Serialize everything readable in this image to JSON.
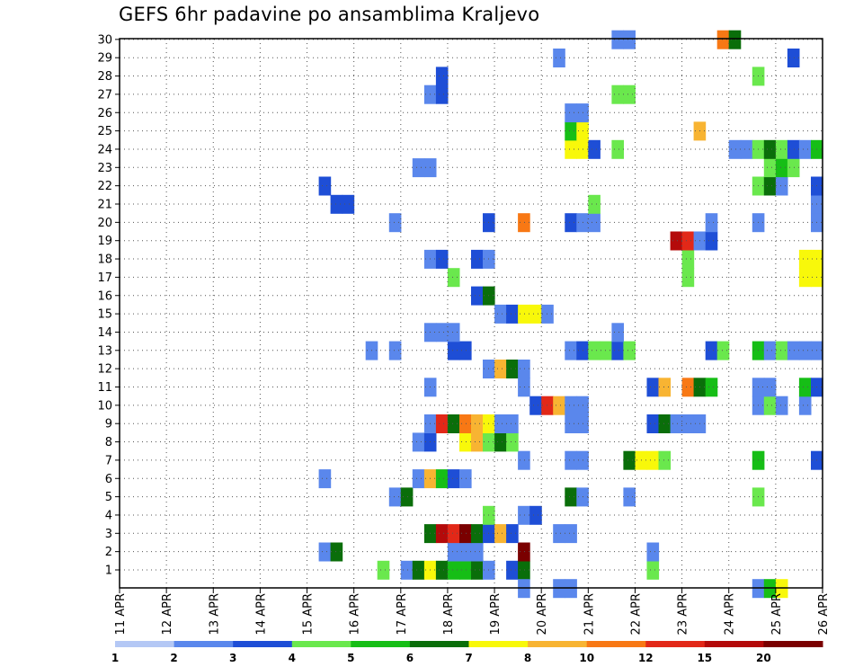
{
  "chart_data": {
    "type": "heatmap",
    "title": "GEFS 6hr padavine po ansamblima Kraljevo",
    "y_ticks": [
      1,
      2,
      3,
      4,
      5,
      6,
      7,
      8,
      9,
      10,
      11,
      12,
      13,
      14,
      15,
      16,
      17,
      18,
      19,
      20,
      21,
      22,
      23,
      24,
      25,
      26,
      27,
      28,
      29,
      30
    ],
    "x_ticks": [
      "11 APR",
      "12 APR",
      "13 APR",
      "14 APR",
      "15 APR",
      "16 APR",
      "17 APR",
      "18 APR",
      "19 APR",
      "20 APR",
      "21 APR",
      "22 APR",
      "23 APR",
      "24 APR",
      "25 APR",
      "26 APR"
    ],
    "xlim": [
      "11 APR 00",
      "26 APR 00"
    ],
    "time_step": "6hr",
    "grid": true,
    "colorbar": {
      "labels": [
        "1",
        "2",
        "3",
        "4",
        "5",
        "6",
        "7",
        "8",
        "10",
        "12",
        "15",
        "20"
      ],
      "colors": [
        "#b4c8f5",
        "#5a87ec",
        "#1e4ed6",
        "#6ae84d",
        "#16be16",
        "#0a6e0a",
        "#f8f80a",
        "#f8b432",
        "#f87814",
        "#e22818",
        "#b40a0a",
        "#7a0000"
      ]
    },
    "cells": [
      [
        1,
        "17 APR 00",
        1
      ],
      [
        1,
        "17 APR 06",
        5
      ],
      [
        1,
        "17 APR 12",
        6
      ],
      [
        1,
        "17 APR 18",
        5
      ],
      [
        1,
        "18 APR 00",
        4
      ],
      [
        1,
        "18 APR 06",
        4
      ],
      [
        1,
        "18 APR 12",
        5
      ],
      [
        1,
        "18 APR 18",
        1
      ],
      [
        1,
        "19 APR 06",
        2
      ],
      [
        1,
        "19 APR 12",
        5
      ],
      [
        1,
        "16 APR 12",
        3
      ],
      [
        1,
        "22 APR 06",
        3
      ],
      [
        2,
        "15 APR 06",
        1
      ],
      [
        2,
        "15 APR 12",
        5
      ],
      [
        2,
        "18 APR 00",
        1
      ],
      [
        2,
        "18 APR 06",
        1
      ],
      [
        2,
        "18 APR 12",
        1
      ],
      [
        2,
        "19 APR 12",
        11
      ],
      [
        2,
        "22 APR 06",
        1
      ],
      [
        3,
        "17 APR 12",
        5
      ],
      [
        3,
        "17 APR 18",
        10
      ],
      [
        3,
        "18 APR 00",
        9
      ],
      [
        3,
        "18 APR 06",
        11
      ],
      [
        3,
        "18 APR 12",
        5
      ],
      [
        3,
        "18 APR 18",
        2
      ],
      [
        3,
        "19 APR 00",
        7
      ],
      [
        3,
        "19 APR 06",
        2
      ],
      [
        3,
        "20 APR 06",
        1
      ],
      [
        3,
        "20 APR 12",
        1
      ],
      [
        4,
        "18 APR 18",
        3
      ],
      [
        4,
        "19 APR 12",
        1
      ],
      [
        4,
        "19 APR 18",
        2
      ],
      [
        5,
        "16 APR 18",
        1
      ],
      [
        5,
        "17 APR 00",
        5
      ],
      [
        5,
        "20 APR 12",
        5
      ],
      [
        5,
        "20 APR 18",
        1
      ],
      [
        5,
        "21 APR 18",
        1
      ],
      [
        5,
        "24 APR 12",
        3
      ],
      [
        6,
        "15 APR 06",
        1
      ],
      [
        6,
        "17 APR 06",
        1
      ],
      [
        6,
        "17 APR 12",
        7
      ],
      [
        6,
        "17 APR 18",
        4
      ],
      [
        6,
        "18 APR 00",
        2
      ],
      [
        6,
        "18 APR 06",
        1
      ],
      [
        7,
        "19 APR 12",
        1
      ],
      [
        7,
        "20 APR 12",
        1
      ],
      [
        7,
        "20 APR 18",
        1
      ],
      [
        7,
        "21 APR 18",
        5
      ],
      [
        7,
        "22 APR 00",
        6
      ],
      [
        7,
        "22 APR 06",
        6
      ],
      [
        7,
        "22 APR 12",
        3
      ],
      [
        7,
        "24 APR 12",
        4
      ],
      [
        7,
        "25 APR 18",
        2
      ],
      [
        8,
        "17 APR 06",
        1
      ],
      [
        8,
        "17 APR 12",
        2
      ],
      [
        8,
        "18 APR 06",
        6
      ],
      [
        8,
        "18 APR 12",
        7
      ],
      [
        8,
        "18 APR 18",
        3
      ],
      [
        8,
        "19 APR 00",
        5
      ],
      [
        8,
        "19 APR 06",
        3
      ],
      [
        9,
        "17 APR 12",
        1
      ],
      [
        9,
        "17 APR 18",
        9
      ],
      [
        9,
        "18 APR 00",
        5
      ],
      [
        9,
        "18 APR 06",
        8
      ],
      [
        9,
        "18 APR 12",
        7
      ],
      [
        9,
        "18 APR 18",
        6
      ],
      [
        9,
        "19 APR 00",
        1
      ],
      [
        9,
        "19 APR 06",
        1
      ],
      [
        9,
        "20 APR 12",
        1
      ],
      [
        9,
        "20 APR 18",
        1
      ],
      [
        9,
        "22 APR 06",
        2
      ],
      [
        9,
        "22 APR 12",
        5
      ],
      [
        9,
        "22 APR 18",
        1
      ],
      [
        9,
        "23 APR 00",
        1
      ],
      [
        9,
        "23 APR 06",
        1
      ],
      [
        10,
        "19 APR 18",
        2
      ],
      [
        10,
        "20 APR 00",
        9
      ],
      [
        10,
        "20 APR 06",
        7
      ],
      [
        10,
        "20 APR 12",
        1
      ],
      [
        10,
        "20 APR 18",
        1
      ],
      [
        10,
        "24 APR 12",
        1
      ],
      [
        10,
        "24 APR 18",
        3
      ],
      [
        10,
        "25 APR 00",
        1
      ],
      [
        10,
        "25 APR 12",
        1
      ],
      [
        11,
        "17 APR 12",
        1
      ],
      [
        11,
        "19 APR 12",
        1
      ],
      [
        11,
        "22 APR 06",
        2
      ],
      [
        11,
        "22 APR 12",
        7
      ],
      [
        11,
        "23 APR 00",
        8
      ],
      [
        11,
        "23 APR 06",
        5
      ],
      [
        11,
        "23 APR 12",
        4
      ],
      [
        11,
        "24 APR 12",
        1
      ],
      [
        11,
        "24 APR 18",
        1
      ],
      [
        11,
        "25 APR 12",
        4
      ],
      [
        11,
        "25 APR 18",
        2
      ],
      [
        12,
        "18 APR 18",
        1
      ],
      [
        12,
        "19 APR 00",
        7
      ],
      [
        12,
        "19 APR 06",
        5
      ],
      [
        12,
        "19 APR 12",
        1
      ],
      [
        13,
        "16 APR 06",
        1
      ],
      [
        13,
        "16 APR 18",
        1
      ],
      [
        13,
        "18 APR 00",
        2
      ],
      [
        13,
        "18 APR 06",
        2
      ],
      [
        13,
        "20 APR 12",
        1
      ],
      [
        13,
        "20 APR 18",
        2
      ],
      [
        13,
        "21 APR 00",
        3
      ],
      [
        13,
        "21 APR 06",
        3
      ],
      [
        13,
        "21 APR 12",
        2
      ],
      [
        13,
        "21 APR 18",
        3
      ],
      [
        13,
        "23 APR 12",
        2
      ],
      [
        13,
        "23 APR 18",
        3
      ],
      [
        13,
        "24 APR 12",
        4
      ],
      [
        13,
        "24 APR 18",
        1
      ],
      [
        13,
        "25 APR 00",
        3
      ],
      [
        13,
        "25 APR 06",
        1
      ],
      [
        13,
        "25 APR 12",
        1
      ],
      [
        13,
        "25 APR 18",
        1
      ],
      [
        14,
        "17 APR 12",
        1
      ],
      [
        14,
        "17 APR 18",
        1
      ],
      [
        14,
        "18 APR 00",
        1
      ],
      [
        14,
        "21 APR 12",
        1
      ],
      [
        15,
        "19 APR 00",
        1
      ],
      [
        15,
        "19 APR 06",
        2
      ],
      [
        15,
        "19 APR 12",
        6
      ],
      [
        15,
        "19 APR 18",
        6
      ],
      [
        15,
        "20 APR 00",
        1
      ],
      [
        16,
        "18 APR 12",
        2
      ],
      [
        16,
        "18 APR 18",
        5
      ],
      [
        17,
        "18 APR 00",
        3
      ],
      [
        17,
        "23 APR 00",
        3
      ],
      [
        17,
        "25 APR 12",
        6
      ],
      [
        17,
        "25 APR 18",
        6
      ],
      [
        18,
        "17 APR 12",
        1
      ],
      [
        18,
        "17 APR 18",
        2
      ],
      [
        18,
        "18 APR 12",
        2
      ],
      [
        18,
        "18 APR 18",
        1
      ],
      [
        18,
        "23 APR 00",
        3
      ],
      [
        18,
        "25 APR 12",
        6
      ],
      [
        18,
        "25 APR 18",
        6
      ],
      [
        19,
        "22 APR 18",
        10
      ],
      [
        19,
        "23 APR 00",
        9
      ],
      [
        19,
        "23 APR 06",
        1
      ],
      [
        19,
        "23 APR 12",
        2
      ],
      [
        20,
        "16 APR 18",
        1
      ],
      [
        20,
        "18 APR 18",
        2
      ],
      [
        20,
        "19 APR 12",
        8
      ],
      [
        20,
        "20 APR 12",
        2
      ],
      [
        20,
        "20 APR 18",
        1
      ],
      [
        20,
        "21 APR 00",
        1
      ],
      [
        20,
        "23 APR 12",
        1
      ],
      [
        20,
        "24 APR 12",
        1
      ],
      [
        20,
        "25 APR 18",
        1
      ],
      [
        21,
        "15 APR 12",
        2
      ],
      [
        21,
        "15 APR 18",
        2
      ],
      [
        21,
        "21 APR 00",
        3
      ],
      [
        21,
        "25 APR 18",
        1
      ],
      [
        22,
        "15 APR 06",
        2
      ],
      [
        22,
        "24 APR 12",
        3
      ],
      [
        22,
        "24 APR 18",
        5
      ],
      [
        22,
        "25 APR 00",
        1
      ],
      [
        22,
        "25 APR 18",
        2
      ],
      [
        23,
        "17 APR 06",
        1
      ],
      [
        23,
        "17 APR 12",
        1
      ],
      [
        23,
        "24 APR 18",
        3
      ],
      [
        23,
        "25 APR 00",
        4
      ],
      [
        23,
        "25 APR 06",
        3
      ],
      [
        24,
        "20 APR 12",
        6
      ],
      [
        24,
        "20 APR 18",
        6
      ],
      [
        24,
        "21 APR 00",
        2
      ],
      [
        24,
        "21 APR 12",
        3
      ],
      [
        24,
        "24 APR 00",
        1
      ],
      [
        24,
        "24 APR 06",
        1
      ],
      [
        24,
        "24 APR 12",
        3
      ],
      [
        24,
        "24 APR 18",
        5
      ],
      [
        24,
        "25 APR 00",
        3
      ],
      [
        24,
        "25 APR 06",
        2
      ],
      [
        24,
        "25 APR 12",
        1
      ],
      [
        24,
        "25 APR 18",
        4
      ],
      [
        25,
        "20 APR 12",
        4
      ],
      [
        25,
        "20 APR 18",
        6
      ],
      [
        25,
        "23 APR 06",
        7
      ],
      [
        26,
        "20 APR 12",
        1
      ],
      [
        26,
        "20 APR 18",
        1
      ],
      [
        27,
        "17 APR 12",
        1
      ],
      [
        27,
        "17 APR 18",
        2
      ],
      [
        27,
        "21 APR 12",
        3
      ],
      [
        27,
        "21 APR 18",
        3
      ],
      [
        28,
        "17 APR 18",
        2
      ],
      [
        28,
        "24 APR 12",
        3
      ],
      [
        29,
        "20 APR 06",
        1
      ],
      [
        29,
        "25 APR 06",
        2
      ],
      [
        30,
        "21 APR 12",
        1
      ],
      [
        30,
        "21 APR 18",
        1
      ],
      [
        30,
        "23 APR 18",
        8
      ],
      [
        30,
        "24 APR 00",
        5
      ],
      [
        0,
        "19 APR 12",
        1
      ],
      [
        0,
        "20 APR 06",
        1
      ],
      [
        0,
        "20 APR 12",
        1
      ],
      [
        0,
        "24 APR 12",
        1
      ],
      [
        0,
        "24 APR 18",
        4
      ],
      [
        0,
        "25 APR 00",
        6
      ]
    ]
  }
}
